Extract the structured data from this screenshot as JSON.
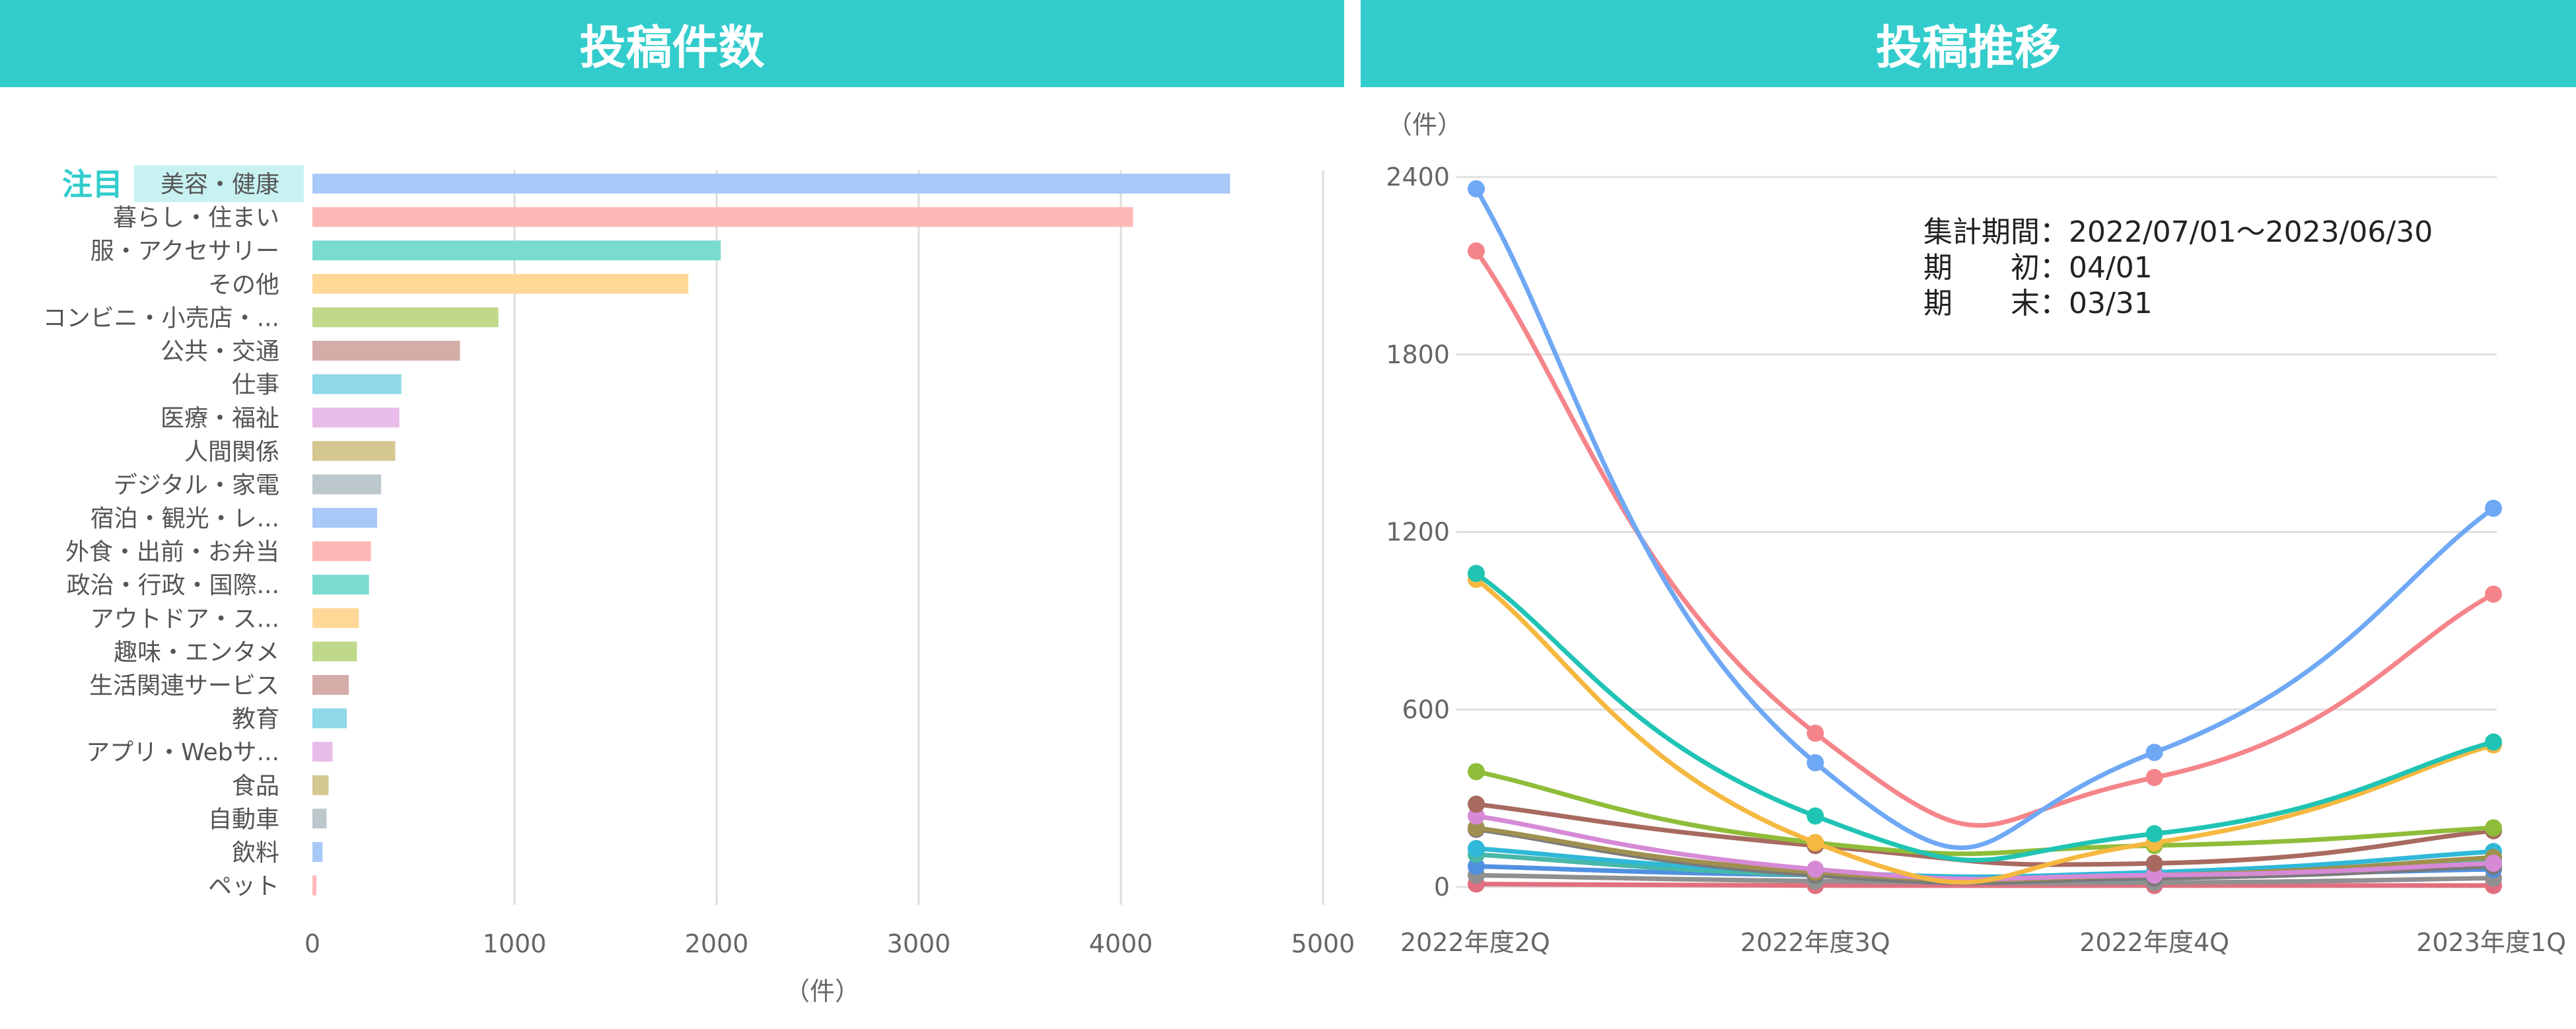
{
  "left_panel": {
    "title": "投稿件数"
  },
  "right_panel": {
    "title": "投稿推移"
  },
  "highlight": {
    "label": "注目",
    "color": "#33cccc",
    "badge_bg": "#c8f2f2"
  },
  "period_note": {
    "line1": "集計期間：2022/07/01～2023/06/30",
    "line2": "期　　初：04/01",
    "line3": "期　　末：03/31"
  },
  "chart_data": [
    {
      "type": "bar",
      "orientation": "horizontal",
      "xlabel": "（件）",
      "xlim": [
        0,
        5000
      ],
      "xticks": [
        0,
        1000,
        2000,
        3000,
        4000,
        5000
      ],
      "grid": true,
      "categories": [
        "美容・健康",
        "暮らし・住まい",
        "服・アクセサリー",
        "その他",
        "コンビニ・小売店・...",
        "公共・交通",
        "仕事",
        "医療・福祉",
        "人間関係",
        "デジタル・家電",
        "宿泊・観光・レ...",
        "外食・出前・お弁当",
        "政治・行政・国際...",
        "アウトドア・ス...",
        "趣味・エンタメ",
        "生活関連サービス",
        "教育",
        "アプリ・Webサ...",
        "食品",
        "自動車",
        "飲料",
        "ペット"
      ],
      "values": [
        4540,
        4060,
        2020,
        1860,
        920,
        730,
        440,
        430,
        410,
        340,
        320,
        290,
        280,
        230,
        220,
        180,
        170,
        100,
        80,
        70,
        50,
        20
      ],
      "colors": [
        "#a8c8f8",
        "#ffb8b8",
        "#7adcd0",
        "#ffd898",
        "#c0d88a",
        "#d4ada8",
        "#8ed8ea",
        "#e8bce8",
        "#d4c890",
        "#bcc8cc",
        "#a8c8f8",
        "#ffb8b8",
        "#7adcd0",
        "#ffd898",
        "#c0d88a",
        "#d4ada8",
        "#8ed8ea",
        "#e8bce8",
        "#d4c890",
        "#bcc8cc",
        "#a8c8f8",
        "#ffb8b8"
      ]
    },
    {
      "type": "line",
      "ylabel": "（件）",
      "ylim": [
        0,
        2400
      ],
      "yticks": [
        0,
        600,
        1200,
        1800,
        2400
      ],
      "grid": true,
      "categories": [
        "2022年度2Q",
        "2022年度3Q",
        "2022年度4Q",
        "2023年度1Q"
      ],
      "series": [
        {
          "color": "#6fa8f5",
          "values": [
            2360,
            420,
            455,
            1280
          ]
        },
        {
          "color": "#f5858a",
          "values": [
            2150,
            520,
            370,
            990
          ]
        },
        {
          "color": "#20c4b4",
          "values": [
            1060,
            240,
            180,
            490
          ]
        },
        {
          "color": "#f5b840",
          "values": [
            1040,
            150,
            150,
            480
          ]
        },
        {
          "color": "#8fbd3a",
          "values": [
            390,
            150,
            140,
            200
          ]
        },
        {
          "color": "#a86a60",
          "values": [
            280,
            140,
            80,
            190
          ]
        },
        {
          "color": "#d68ad6",
          "values": [
            240,
            60,
            40,
            80
          ]
        },
        {
          "color": "#a09050",
          "values": [
            200,
            50,
            40,
            100
          ]
        },
        {
          "color": "#7a7a7a",
          "values": [
            195,
            40,
            30,
            70
          ]
        },
        {
          "color": "#30b8d8",
          "values": [
            130,
            50,
            50,
            120
          ]
        },
        {
          "color": "#48b8a8",
          "values": [
            110,
            40,
            30,
            90
          ]
        },
        {
          "color": "#5090e0",
          "values": [
            70,
            40,
            40,
            60
          ]
        },
        {
          "color": "#909090",
          "values": [
            40,
            20,
            15,
            30
          ]
        },
        {
          "color": "#e07080",
          "values": [
            10,
            5,
            5,
            5
          ]
        }
      ]
    }
  ]
}
